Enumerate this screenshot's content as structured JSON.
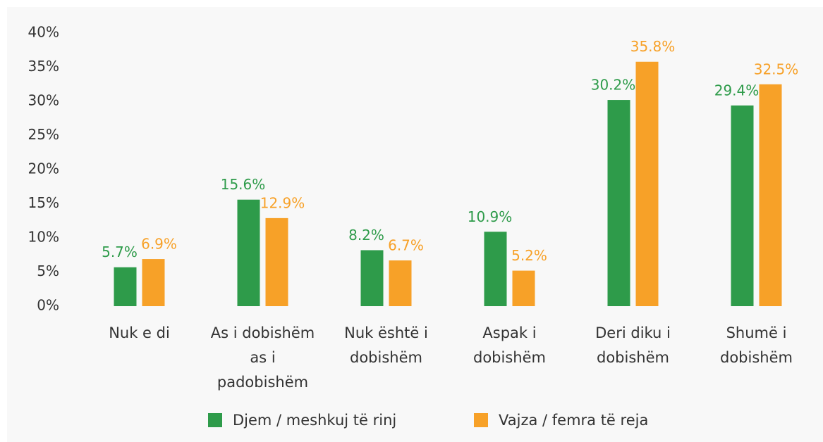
{
  "chart_data": {
    "type": "bar",
    "categories": [
      "Nuk e di",
      "As i dobishëm as i padobishëm",
      "Nuk është i dobishëm",
      "Aspak i dobishëm",
      "Deri diku i dobishëm",
      "Shumë i dobishëm"
    ],
    "series": [
      {
        "name": "Djem / meshkuj të rinj",
        "color": "#2e9b4a",
        "values": [
          5.7,
          15.6,
          8.2,
          10.9,
          30.2,
          29.4
        ],
        "value_labels": [
          "5.7%",
          "15.6%",
          "8.2%",
          "10.9%",
          "30.2%",
          "29.4%"
        ]
      },
      {
        "name": "Vajza / femra të reja",
        "color": "#f7a128",
        "values": [
          6.9,
          12.9,
          6.7,
          5.2,
          35.8,
          32.5
        ],
        "value_labels": [
          "6.9%",
          "12.9%",
          "6.7%",
          "5.2%",
          "35.8%",
          "32.5%"
        ]
      }
    ],
    "ylim": [
      0,
      40
    ],
    "yticks": [
      {
        "value": 0,
        "label": "0%"
      },
      {
        "value": 5,
        "label": "5%"
      },
      {
        "value": 10,
        "label": "10%"
      },
      {
        "value": 15,
        "label": "15%"
      },
      {
        "value": 20,
        "label": "20%"
      },
      {
        "value": 25,
        "label": "25%"
      },
      {
        "value": 30,
        "label": "30%"
      },
      {
        "value": 35,
        "label": "35%"
      },
      {
        "value": 40,
        "label": "40%"
      }
    ],
    "grid": false,
    "legend": "bottom"
  }
}
